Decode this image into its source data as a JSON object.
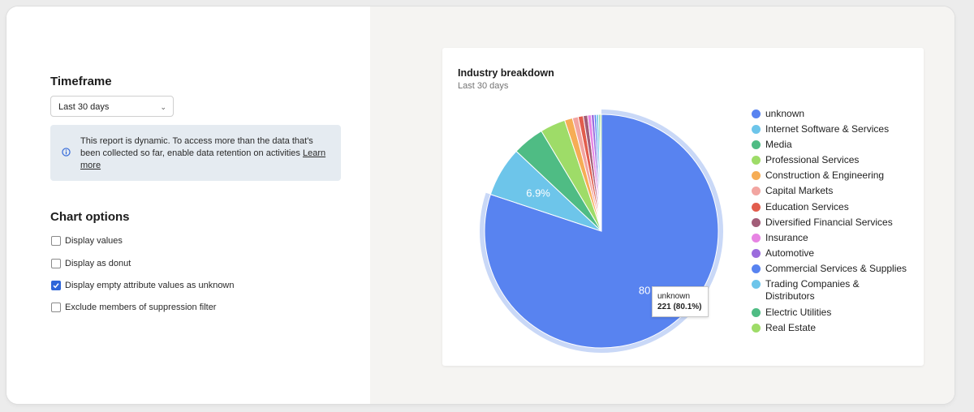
{
  "timeframe": {
    "title": "Timeframe",
    "selected": "Last 30 days",
    "info_text": "This report is dynamic. To access more than the data that's been collected so far, enable data retention on activities ",
    "info_link": "Learn more"
  },
  "chart_options": {
    "title": "Chart options",
    "options": [
      {
        "label": "Display values",
        "checked": false
      },
      {
        "label": "Display as donut",
        "checked": false
      },
      {
        "label": "Display empty attribute values as unknown",
        "checked": true
      },
      {
        "label": "Exclude members of suppression filter",
        "checked": false
      }
    ]
  },
  "card": {
    "title": "Industry breakdown",
    "subtitle": "Last 30 days"
  },
  "tooltip": {
    "label": "unknown",
    "value": "221 (80.1%)"
  },
  "colors": {
    "accent": "#2f66d9",
    "info_bg": "#e5ebf1"
  },
  "chart_data": {
    "type": "pie",
    "title": "Industry breakdown",
    "subtitle": "Last 30 days",
    "categories": [
      "unknown",
      "Internet Software & Services",
      "Media",
      "Professional Services",
      "Construction & Engineering",
      "Capital Markets",
      "Education Services",
      "Diversified Financial Services",
      "Insurance",
      "Automotive",
      "Commercial Services & Supplies",
      "Trading Companies & Distributors",
      "Electric Utilities",
      "Real Estate"
    ],
    "values": [
      80.1,
      6.9,
      4.4,
      3.5,
      1.1,
      0.8,
      0.7,
      0.6,
      0.5,
      0.4,
      0.3,
      0.3,
      0.2,
      0.2
    ],
    "colors": [
      "#5883f0",
      "#6dc5ea",
      "#4fbc84",
      "#9edc68",
      "#f6ad55",
      "#f2a5a1",
      "#e25d4d",
      "#a25d78",
      "#e784e3",
      "#9b6cdd",
      "#5883f0",
      "#6dc5ea",
      "#4fbc84",
      "#9edc68"
    ],
    "data_labels": [
      {
        "category": "unknown",
        "text": "80"
      },
      {
        "category": "Internet Software & Services",
        "text": "6.9%"
      }
    ],
    "highlighted": "unknown",
    "legend_position": "right"
  }
}
